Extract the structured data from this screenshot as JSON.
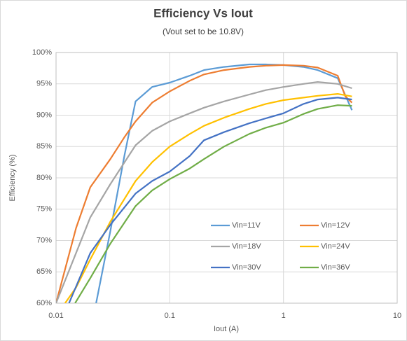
{
  "chart_data": {
    "type": "line",
    "title": "Efficiency Vs Iout",
    "subtitle": "(Vout set to be 10.8V)",
    "x_label": "Iout (A)",
    "y_label": "Efficiency (%)",
    "x_scale": "log",
    "xlim": [
      0.01,
      10
    ],
    "xticks": [
      0.01,
      0.1,
      1,
      10
    ],
    "ylim": [
      60,
      100
    ],
    "yticks": [
      {
        "value": 60,
        "label": "60%"
      },
      {
        "value": 65,
        "label": "65%"
      },
      {
        "value": 70,
        "label": "70%"
      },
      {
        "value": 75,
        "label": "75%"
      },
      {
        "value": 80,
        "label": "80%"
      },
      {
        "value": 85,
        "label": "85%"
      },
      {
        "value": 90,
        "label": "90%"
      },
      {
        "value": 95,
        "label": "95%"
      },
      {
        "value": 100,
        "label": "100%"
      }
    ],
    "grid": true,
    "legend": "lower right",
    "series": [
      {
        "name": "Vin=11V",
        "color": "#5b9bd5",
        "x": [
          0.0225,
          0.03,
          0.04,
          0.05,
          0.07,
          0.1,
          0.15,
          0.2,
          0.3,
          0.5,
          0.7,
          1,
          1.5,
          2,
          3,
          4
        ],
        "values": [
          60,
          71.5,
          83.6,
          92.2,
          94.5,
          95.2,
          96.3,
          97.2,
          97.7,
          98.1,
          98.1,
          98,
          97.7,
          97.2,
          95.9,
          90.8
        ]
      },
      {
        "name": "Vin=12V",
        "color": "#ed7d31",
        "x": [
          0.01,
          0.015,
          0.02,
          0.03,
          0.04,
          0.05,
          0.07,
          0.1,
          0.15,
          0.2,
          0.3,
          0.5,
          0.7,
          1,
          1.5,
          2,
          3,
          3.5,
          4
        ],
        "values": [
          60,
          72,
          78.5,
          83,
          86.5,
          89,
          92,
          93.8,
          95.5,
          96.5,
          97.2,
          97.7,
          97.9,
          98,
          97.9,
          97.6,
          96.3,
          93,
          92
        ]
      },
      {
        "name": "Vin=18V",
        "color": "#a5a5a5",
        "x": [
          0.01,
          0.02,
          0.03,
          0.05,
          0.07,
          0.1,
          0.15,
          0.2,
          0.3,
          0.5,
          0.7,
          1,
          1.5,
          2,
          3,
          4
        ],
        "values": [
          60,
          73.7,
          79,
          85.2,
          87.5,
          89,
          90.3,
          91.2,
          92.2,
          93.3,
          94,
          94.5,
          95,
          95.3,
          95,
          94.3
        ]
      },
      {
        "name": "Vin=24V",
        "color": "#ffc000",
        "x": [
          0.012,
          0.015,
          0.02,
          0.03,
          0.05,
          0.07,
          0.1,
          0.15,
          0.2,
          0.3,
          0.5,
          0.7,
          1,
          1.5,
          2,
          3,
          4
        ],
        "values": [
          60,
          62.5,
          67,
          73,
          79.5,
          82.5,
          85,
          87,
          88.3,
          89.6,
          91,
          91.8,
          92.4,
          92.8,
          93.1,
          93.4,
          93
        ]
      },
      {
        "name": "Vin=30V",
        "color": "#4472c4",
        "x": [
          0.013,
          0.02,
          0.03,
          0.05,
          0.07,
          0.1,
          0.15,
          0.2,
          0.3,
          0.5,
          0.7,
          1,
          1.5,
          2,
          3,
          4
        ],
        "values": [
          60,
          68,
          72.5,
          77.5,
          79.5,
          81,
          83.5,
          86,
          87.3,
          88.7,
          89.5,
          90.3,
          91.8,
          92.5,
          92.8,
          92.5
        ]
      },
      {
        "name": "Vin=36V",
        "color": "#70ad47",
        "x": [
          0.0147,
          0.02,
          0.03,
          0.05,
          0.07,
          0.1,
          0.15,
          0.2,
          0.3,
          0.5,
          0.7,
          1,
          1.5,
          2,
          3,
          4
        ],
        "values": [
          60,
          64,
          69.5,
          75.5,
          78,
          79.8,
          81.5,
          83,
          85,
          87,
          88,
          88.8,
          90.2,
          91,
          91.6,
          91.5
        ]
      }
    ]
  }
}
